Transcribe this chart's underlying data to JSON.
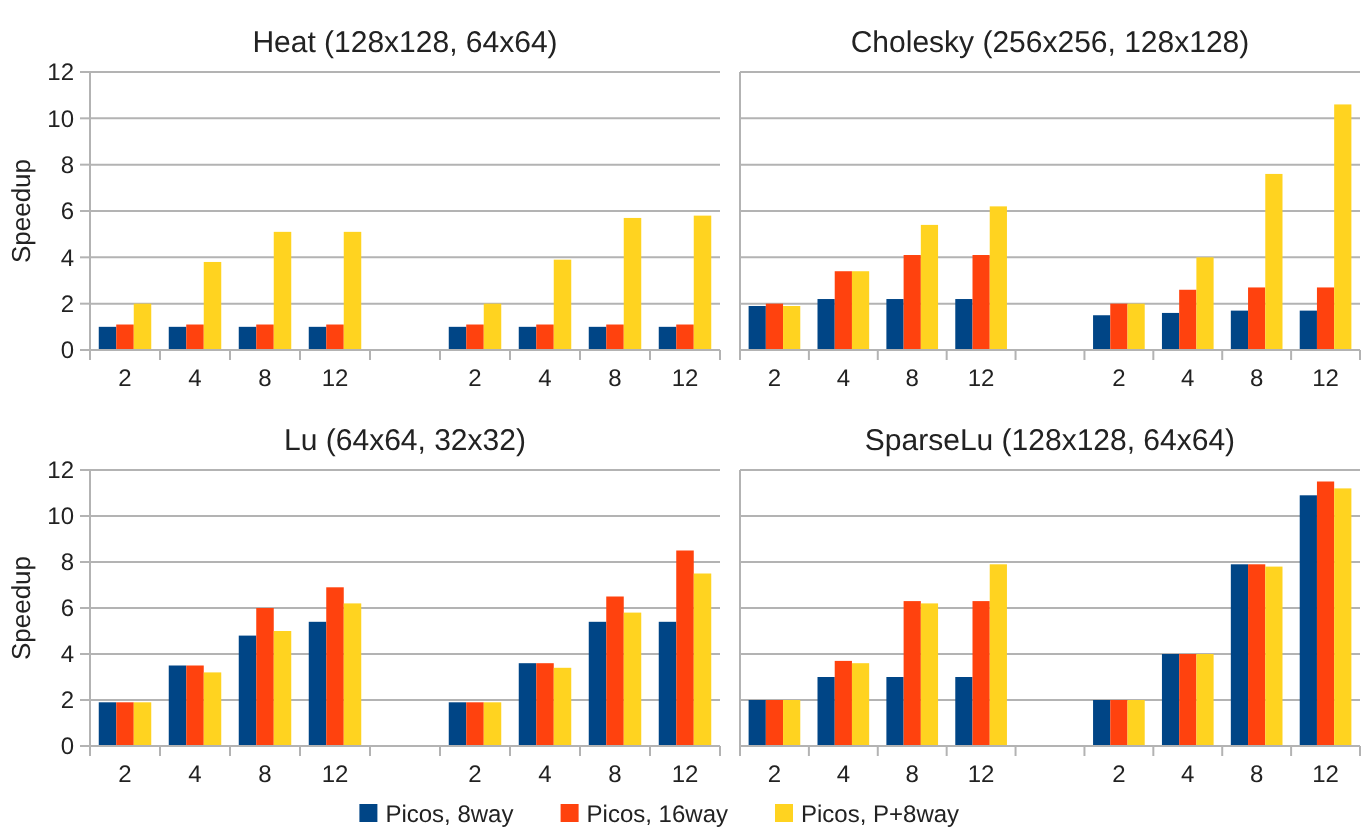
{
  "chart_data": [
    {
      "type": "bar",
      "title": "Heat (128x128, 64x64)",
      "ylabel": "Speedup",
      "categories": [
        "2",
        "4",
        "8",
        "12",
        null,
        "2",
        "4",
        "8",
        "12"
      ],
      "ylim": [
        0,
        12
      ],
      "yticks": [
        0,
        2,
        4,
        6,
        8,
        10,
        12
      ],
      "grid": "y",
      "legend": false,
      "series": [
        {
          "color": "#004586",
          "values": [
            1,
            1,
            1,
            1,
            null,
            1,
            1,
            1,
            1
          ]
        },
        {
          "color": "#ff420e",
          "values": [
            1.1,
            1.1,
            1.1,
            1.1,
            null,
            1.1,
            1.1,
            1.1,
            1.1
          ]
        },
        {
          "color": "#ffd320",
          "values": [
            2,
            3.8,
            5.1,
            5.1,
            null,
            2,
            3.9,
            5.7,
            5.8
          ]
        }
      ]
    },
    {
      "type": "bar",
      "title": "Cholesky (256x256, 128x128)",
      "categories": [
        "2",
        "4",
        "8",
        "12",
        null,
        "2",
        "4",
        "8",
        "12"
      ],
      "ylim": [
        0,
        12
      ],
      "yticks": [
        0,
        2,
        4,
        6,
        8,
        10,
        12
      ],
      "tick_labels": "x",
      "grid": "y",
      "legend": false,
      "series": [
        {
          "color": "#004586",
          "values": [
            1.9,
            2.2,
            2.2,
            2.2,
            null,
            1.5,
            1.6,
            1.7,
            1.7
          ]
        },
        {
          "color": "#ff420e",
          "values": [
            2,
            3.4,
            4.1,
            4.1,
            null,
            2,
            2.6,
            2.7,
            2.7
          ]
        },
        {
          "color": "#ffd320",
          "values": [
            1.9,
            3.4,
            5.4,
            6.2,
            null,
            2,
            4,
            7.6,
            10.6
          ]
        }
      ]
    },
    {
      "type": "bar",
      "title": "Lu (64x64, 32x32)",
      "ylabel": "Speedup",
      "categories": [
        "2",
        "4",
        "8",
        "12",
        null,
        "2",
        "4",
        "8",
        "12"
      ],
      "ylim": [
        0,
        12
      ],
      "yticks": [
        0,
        2,
        4,
        6,
        8,
        10,
        12
      ],
      "grid": "y",
      "legend": false,
      "series": [
        {
          "color": "#004586",
          "values": [
            1.9,
            3.5,
            4.8,
            5.4,
            null,
            1.9,
            3.6,
            5.4,
            5.4
          ]
        },
        {
          "color": "#ff420e",
          "values": [
            1.9,
            3.5,
            6,
            6.9,
            null,
            1.9,
            3.6,
            6.5,
            8.5
          ]
        },
        {
          "color": "#ffd320",
          "values": [
            1.9,
            3.2,
            5,
            6.2,
            null,
            1.9,
            3.4,
            5.8,
            7.5
          ]
        }
      ]
    },
    {
      "type": "bar",
      "title": "SparseLu (128x128, 64x64)",
      "categories": [
        "2",
        "4",
        "8",
        "12",
        null,
        "2",
        "4",
        "8",
        "12"
      ],
      "ylim": [
        0,
        12
      ],
      "yticks": [
        0,
        2,
        4,
        6,
        8,
        10,
        12
      ],
      "tick_labels": "x",
      "grid": "y",
      "legend": "bottom",
      "series": [
        {
          "name": "Picos, 8way",
          "color": "#004586",
          "values": [
            2,
            3,
            3,
            3,
            null,
            2,
            4,
            7.9,
            10.9
          ]
        },
        {
          "name": "Picos, 16way",
          "color": "#ff420e",
          "values": [
            2,
            3.7,
            6.3,
            6.3,
            null,
            2,
            4,
            7.9,
            11.5
          ]
        },
        {
          "name": "Picos, P+8way",
          "color": "#ffd320",
          "values": [
            2,
            3.6,
            6.2,
            7.9,
            null,
            2,
            4,
            7.8,
            11.2
          ]
        }
      ]
    }
  ]
}
